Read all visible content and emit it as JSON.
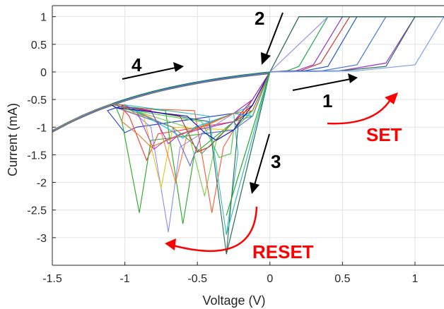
{
  "chart_data": {
    "type": "line",
    "title": "",
    "xlabel": "Voltage (V)",
    "ylabel": "Current (mA)",
    "xlim": [
      -1.5,
      1.2
    ],
    "ylim": [
      -3.5,
      1.2
    ],
    "grid": true,
    "legend": "none",
    "xticks": [
      -1.5,
      -1,
      -0.5,
      0,
      0.5,
      1
    ],
    "xtick_labels": [
      "-1.5",
      "-1",
      "-0.5",
      "0",
      "0.5",
      "1"
    ],
    "yticks": [
      1,
      0.5,
      0,
      -0.5,
      -1,
      -1.5,
      -2,
      -2.5,
      -3
    ],
    "ytick_labels": [
      "1",
      "0.5",
      "0",
      "-0.5",
      "-1",
      "-1.5",
      "-2",
      "-2.5",
      "-3"
    ],
    "reset_minima": [
      {
        "x": -1.0,
        "y": -1.1,
        "color": "#1f3bdc"
      },
      {
        "x": -0.85,
        "y": -1.6,
        "color": "#ff3333"
      },
      {
        "x": -0.9,
        "y": -2.55,
        "color": "#22aa22"
      },
      {
        "x": -0.7,
        "y": -2.9,
        "color": "#8c8cf0"
      },
      {
        "x": -0.6,
        "y": -2.75,
        "color": "#22aa22"
      },
      {
        "x": -0.75,
        "y": -2.1,
        "color": "#e8c020"
      },
      {
        "x": -0.65,
        "y": -2.0,
        "color": "#ff7733"
      },
      {
        "x": -0.45,
        "y": -2.25,
        "color": "#77cc44"
      },
      {
        "x": -0.4,
        "y": -2.55,
        "color": "#ff5533"
      },
      {
        "x": -0.3,
        "y": -2.95,
        "color": "#33bbbb"
      },
      {
        "x": -0.3,
        "y": -3.3,
        "color": "#2a6a5a"
      },
      {
        "x": -0.55,
        "y": -1.7,
        "color": "#6666dd"
      },
      {
        "x": -0.8,
        "y": -1.4,
        "color": "#bb44bb"
      },
      {
        "x": -0.5,
        "y": -1.45,
        "color": "#cc2222"
      },
      {
        "x": -0.35,
        "y": -1.55,
        "color": "#44cc44"
      },
      {
        "x": -0.6,
        "y": -1.2,
        "color": "#00bbee"
      },
      {
        "x": -0.7,
        "y": -1.3,
        "color": "#9933cc"
      },
      {
        "x": -0.45,
        "y": -1.1,
        "color": "#0000cc"
      },
      {
        "x": -0.9,
        "y": -1.15,
        "color": "#dd7722"
      },
      {
        "x": -0.55,
        "y": -1.25,
        "color": "#669966"
      }
    ],
    "set_switching": [
      {
        "x": 0.2,
        "color": "#22aa55"
      },
      {
        "x": 0.3,
        "color": "#8833cc"
      },
      {
        "x": 0.35,
        "color": "#cc3333"
      },
      {
        "x": 0.4,
        "color": "#2255cc"
      },
      {
        "x": 0.6,
        "color": "#4477dd"
      },
      {
        "x": 0.8,
        "color": "#9933cc"
      },
      {
        "x": 0.8,
        "color": "#2a6a5a"
      },
      {
        "x": 1.0,
        "color": "#7aa0ee"
      }
    ],
    "annotations": [
      "1",
      "2",
      "3",
      "4",
      "SET",
      "RESET"
    ]
  }
}
